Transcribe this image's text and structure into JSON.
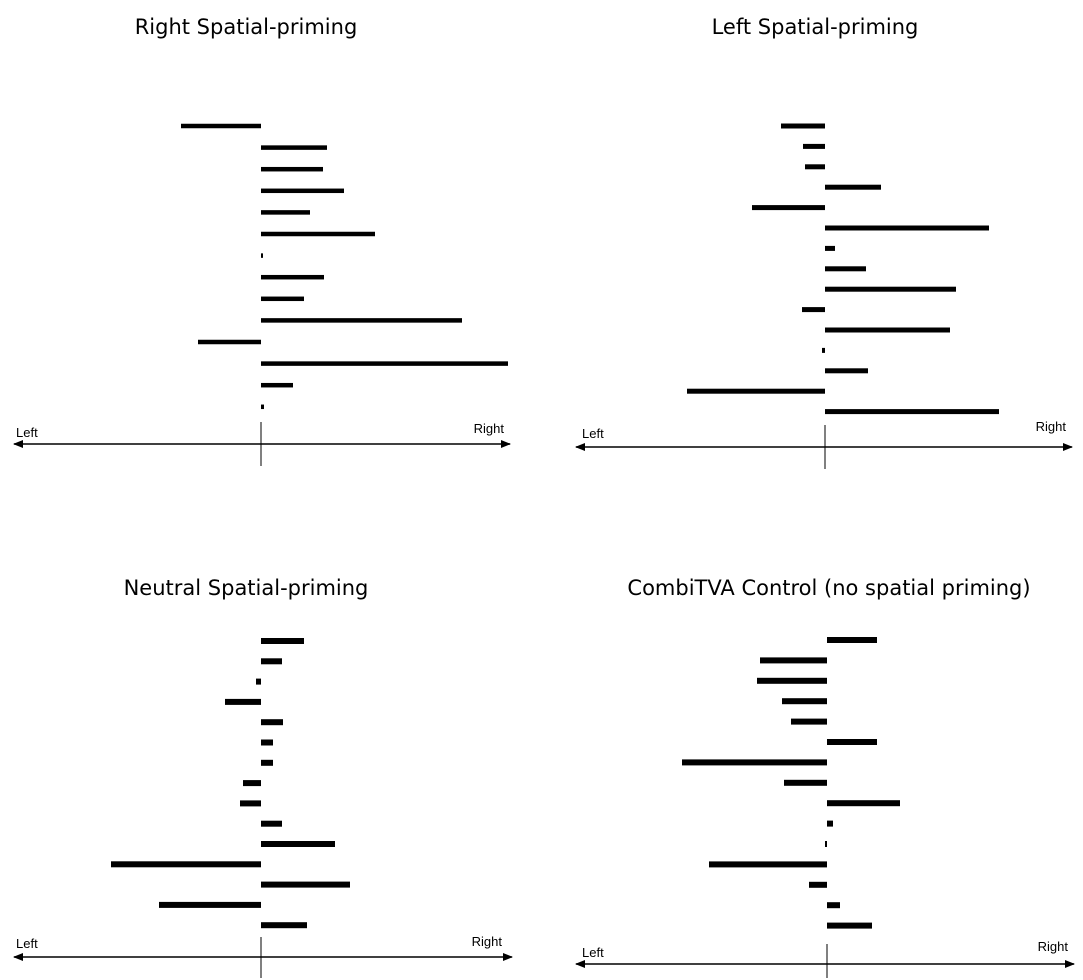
{
  "chart_data": [
    {
      "type": "bar",
      "orientation": "horizontal",
      "title": "Right Spatial-priming",
      "x_left_label": "Left",
      "x_right_label": "Right",
      "values": [
        -80,
        66,
        62,
        83,
        49,
        114,
        1,
        63,
        43,
        201,
        -63,
        247,
        32,
        3
      ]
    },
    {
      "type": "bar",
      "orientation": "horizontal",
      "title": "Left Spatial-priming",
      "x_left_label": "Left",
      "x_right_label": "Right",
      "values": [
        -44,
        -22,
        -20,
        56,
        -73,
        164,
        10,
        41,
        131,
        -23,
        125,
        -3,
        43,
        -138,
        174
      ]
    },
    {
      "type": "bar",
      "orientation": "horizontal",
      "title": "Neutral Spatial-priming",
      "x_left_label": "Left",
      "x_right_label": "Right",
      "values": [
        43,
        21,
        -5,
        -36,
        22,
        12,
        12,
        -18,
        -21,
        21,
        74,
        -150,
        89,
        -102,
        46
      ]
    },
    {
      "type": "bar",
      "orientation": "horizontal",
      "title": "CombiTVA Control (no spatial priming)",
      "x_left_label": "Left",
      "x_right_label": "Right",
      "values": [
        50,
        -67,
        -70,
        -45,
        -36,
        50,
        -145,
        -43,
        73,
        6,
        -1,
        -118,
        -18,
        13,
        45
      ]
    }
  ]
}
